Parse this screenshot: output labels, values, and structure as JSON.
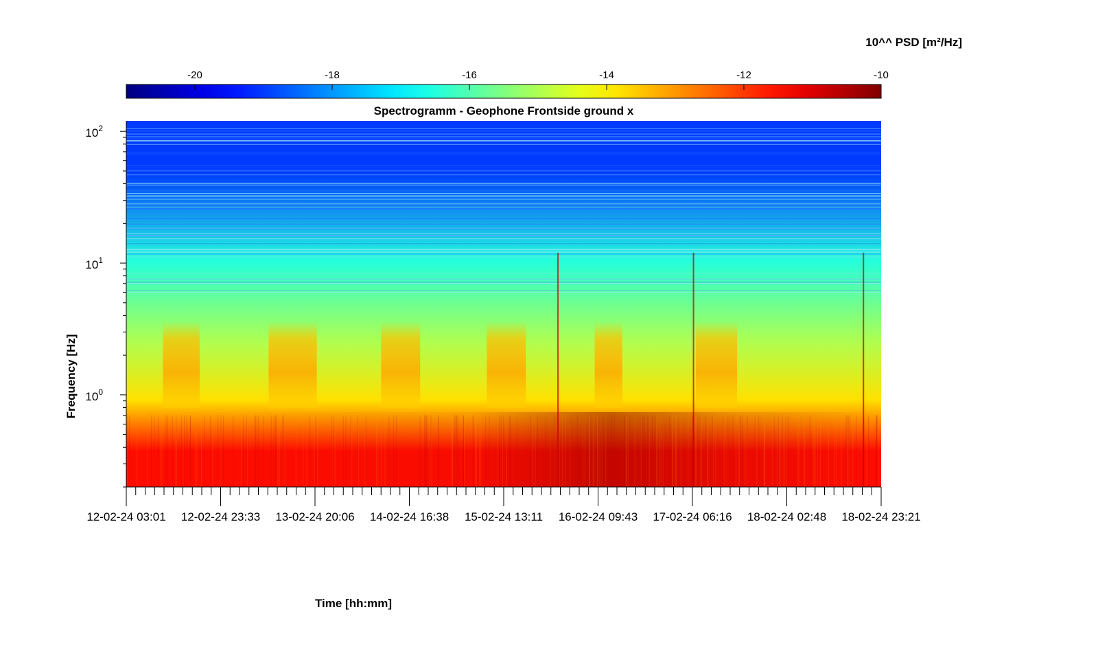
{
  "chart_data": {
    "type": "heatmap",
    "title": "Spectrogramm - Geophone Frontside ground x",
    "xlabel": "Time [hh:mm]",
    "ylabel": "Frequency [Hz]",
    "yscale": "log",
    "ylim": [
      0.2,
      120
    ],
    "colorbar": {
      "label": "10^^ PSD [m²/Hz]",
      "ticks": [
        -20,
        -18,
        -16,
        -14,
        -12,
        -10
      ],
      "range": [
        -21,
        -10
      ],
      "colormap": "jet",
      "placement": "top"
    },
    "x_ticks": [
      "12-02-24 03:01",
      "12-02-24 23:33",
      "13-02-24 20:06",
      "14-02-24 16:38",
      "15-02-24 13:11",
      "16-02-24 09:43",
      "17-02-24 06:16",
      "18-02-24 02:48",
      "18-02-24 23:21"
    ],
    "y_ticks": [
      {
        "label": "10",
        "exp": "0",
        "value": 1
      },
      {
        "label": "10",
        "exp": "1",
        "value": 10
      },
      {
        "label": "10",
        "exp": "2",
        "value": 100
      }
    ],
    "frequency_bands_log10_psd": [
      {
        "range_hz": [
          0.2,
          0.7
        ],
        "approx_log10_psd": -11.5,
        "note": "strong low-frequency energy, strongest around 16-02-24"
      },
      {
        "range_hz": [
          0.7,
          1.2
        ],
        "approx_log10_psd": -13.8
      },
      {
        "range_hz": [
          1.2,
          5.5
        ],
        "approx_log10_psd": -15.0,
        "note": "periodic daytime bursts up to about -13"
      },
      {
        "range_hz": [
          5.5,
          20
        ],
        "approx_log10_psd": -16.5
      },
      {
        "range_hz": [
          20,
          120
        ],
        "approx_log10_psd": -19.0
      }
    ],
    "daytime_bursts": [
      {
        "start": "12-02-24 11:00",
        "end": "12-02-24 19:00"
      },
      {
        "start": "13-02-24 10:00",
        "end": "13-02-24 20:30"
      },
      {
        "start": "14-02-24 10:30",
        "end": "14-02-24 19:00"
      },
      {
        "start": "15-02-24 09:30",
        "end": "15-02-24 18:00"
      },
      {
        "start": "16-02-24 09:00",
        "end": "16-02-24 15:00"
      },
      {
        "start": "17-02-24 07:00",
        "end": "17-02-24 16:00"
      }
    ],
    "grid": false
  }
}
